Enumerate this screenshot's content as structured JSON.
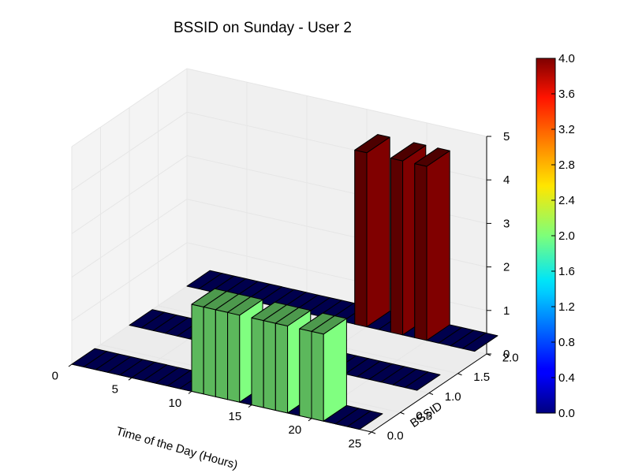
{
  "chart_data": {
    "type": "bar3d",
    "title": "BSSID on Sunday - User 2",
    "xlabel": "Time of the Day (Hours)",
    "ylabel": "BSSID",
    "zlabel": "",
    "xlim": [
      0,
      25
    ],
    "ylim": [
      0,
      2
    ],
    "zlim": [
      0,
      5
    ],
    "x_ticks": [
      "0",
      "5",
      "10",
      "15",
      "20",
      "25"
    ],
    "y_ticks": [
      "0.0",
      "0.5",
      "1.0",
      "1.5",
      "2.0"
    ],
    "z_ticks": [
      "0",
      "1",
      "2",
      "3",
      "4",
      "5"
    ],
    "colorbar": {
      "min": 0,
      "max": 4,
      "ticks": [
        "0.0",
        "0.4",
        "0.8",
        "1.2",
        "1.6",
        "2.0",
        "2.4",
        "2.8",
        "3.2",
        "3.6",
        "4.0"
      ],
      "colormap": "jet"
    },
    "series": [
      {
        "bssid": 0,
        "x": [
          0,
          1,
          2,
          3,
          4,
          5,
          6,
          7,
          8,
          9,
          10,
          11,
          12,
          13,
          14,
          15,
          16,
          17,
          18,
          19,
          20,
          21,
          22,
          23
        ],
        "values": [
          0,
          0,
          0,
          0,
          0,
          0,
          0,
          0,
          0,
          0,
          2,
          2,
          2,
          2,
          0,
          2,
          2,
          2,
          0,
          2,
          2,
          0,
          0,
          0
        ]
      },
      {
        "bssid": 1,
        "x": [
          0,
          1,
          2,
          3,
          4,
          5,
          6,
          7,
          8,
          9,
          10,
          11,
          12,
          13,
          14,
          15,
          16,
          17,
          18,
          19,
          20,
          21,
          22,
          23
        ],
        "values": [
          0,
          0,
          0,
          0,
          0,
          0,
          0,
          0,
          0,
          0,
          0,
          0,
          0,
          0,
          0,
          0,
          0,
          0,
          0,
          0,
          0,
          0,
          0,
          0
        ]
      },
      {
        "bssid": 2,
        "x": [
          0,
          1,
          2,
          3,
          4,
          5,
          6,
          7,
          8,
          9,
          10,
          11,
          12,
          13,
          14,
          15,
          16,
          17,
          18,
          19,
          20,
          21,
          22,
          23
        ],
        "values": [
          0,
          0,
          0,
          0,
          0,
          0,
          0,
          0,
          0,
          0,
          0,
          0,
          0,
          0,
          4,
          0,
          0,
          4,
          0,
          4,
          0,
          0,
          0,
          0
        ]
      }
    ]
  }
}
